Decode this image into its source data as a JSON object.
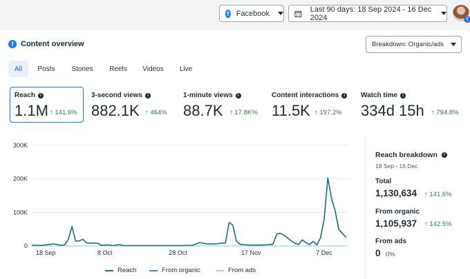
{
  "header": {
    "platform_selector": {
      "label": "Facebook"
    },
    "date_range": {
      "label": "Last 90 days: 18 Sep 2024 - 16 Dec 2024"
    }
  },
  "overview": {
    "title": "Content overview",
    "breakdown_selector": "Breakdown: Organic/ads"
  },
  "tabs": [
    {
      "label": "All",
      "active": true
    },
    {
      "label": "Posts",
      "active": false
    },
    {
      "label": "Stories",
      "active": false
    },
    {
      "label": "Reels",
      "active": false
    },
    {
      "label": "Videos",
      "active": false
    },
    {
      "label": "Live",
      "active": false
    }
  ],
  "metrics": [
    {
      "label": "Reach",
      "value": "1.1M",
      "change": "↑ 141.6%",
      "selected": true
    },
    {
      "label": "3-second views",
      "value": "882.1K",
      "change": "↑ 464%",
      "selected": false
    },
    {
      "label": "1-minute views",
      "value": "88.7K",
      "change": "↑ 17.8K%",
      "selected": false
    },
    {
      "label": "Content interactions",
      "value": "11.5K",
      "change": "↑ 197.2%",
      "selected": false
    },
    {
      "label": "Watch time",
      "value": "334d 15h",
      "change": "↑ 794.8%",
      "selected": false
    }
  ],
  "breakdown_panel": {
    "title": "Reach breakdown",
    "date_range": "18 Sep - 16 Dec",
    "total_label": "Total",
    "total_value": "1,130,634",
    "total_change": "↑ 141.6%",
    "organic_label": "From organic",
    "organic_value": "1,105,937",
    "organic_change": "↑ 142.5%",
    "ads_label": "From ads",
    "ads_value": "0",
    "ads_change": "0%"
  },
  "colors": {
    "reach": "#1d6b73",
    "organic": "#3a86c8",
    "ads": "#9fd3f0",
    "positive": "#2d7a3e",
    "accent": "#1877f2"
  },
  "chart_data": {
    "type": "line",
    "ylim": [
      0,
      300000
    ],
    "y_ticks": [
      "0",
      "100K",
      "200K",
      "300K"
    ],
    "x_tick_labels": [
      "18 Sep",
      "8 Oct",
      "28 Oct",
      "17 Nov",
      "7 Dec"
    ],
    "x_tick_days": [
      0,
      20,
      40,
      60,
      80
    ],
    "legend": [
      "Reach",
      "From organic",
      "From ads"
    ],
    "series": [
      {
        "name": "Reach",
        "points": [
          [
            0,
            2000
          ],
          [
            2,
            1500
          ],
          [
            4,
            3000
          ],
          [
            6,
            6000
          ],
          [
            8,
            2000
          ],
          [
            9,
            3000
          ],
          [
            10,
            20000
          ],
          [
            11,
            58000
          ],
          [
            12,
            14000
          ],
          [
            13,
            15000
          ],
          [
            14,
            20000
          ],
          [
            15,
            9000
          ],
          [
            16,
            8000
          ],
          [
            18,
            8000
          ],
          [
            19,
            2000
          ],
          [
            21,
            3000
          ],
          [
            22,
            1000
          ],
          [
            24,
            4000
          ],
          [
            25,
            1000
          ],
          [
            28,
            1000
          ],
          [
            32,
            1000
          ],
          [
            36,
            1000
          ],
          [
            40,
            1000
          ],
          [
            44,
            2000
          ],
          [
            46,
            10000
          ],
          [
            48,
            6000
          ],
          [
            50,
            6000
          ],
          [
            52,
            8000
          ],
          [
            53,
            9000
          ],
          [
            54,
            70000
          ],
          [
            55,
            62000
          ],
          [
            56,
            14000
          ],
          [
            57,
            5000
          ],
          [
            60,
            2000
          ],
          [
            64,
            3000
          ],
          [
            66,
            5000
          ],
          [
            67,
            35000
          ],
          [
            68,
            38000
          ],
          [
            69,
            32000
          ],
          [
            70,
            24000
          ],
          [
            71,
            15000
          ],
          [
            72,
            8000
          ],
          [
            73,
            4000
          ],
          [
            74,
            18000
          ],
          [
            75,
            10000
          ],
          [
            76,
            4000
          ],
          [
            77,
            14000
          ],
          [
            78,
            3000
          ],
          [
            79,
            24000
          ],
          [
            80,
            80000
          ],
          [
            81,
            203000
          ],
          [
            82,
            142000
          ],
          [
            83,
            105000
          ],
          [
            84,
            50000
          ],
          [
            86,
            25000
          ]
        ]
      },
      {
        "name": "From organic",
        "points": []
      },
      {
        "name": "From ads",
        "points": []
      }
    ]
  }
}
